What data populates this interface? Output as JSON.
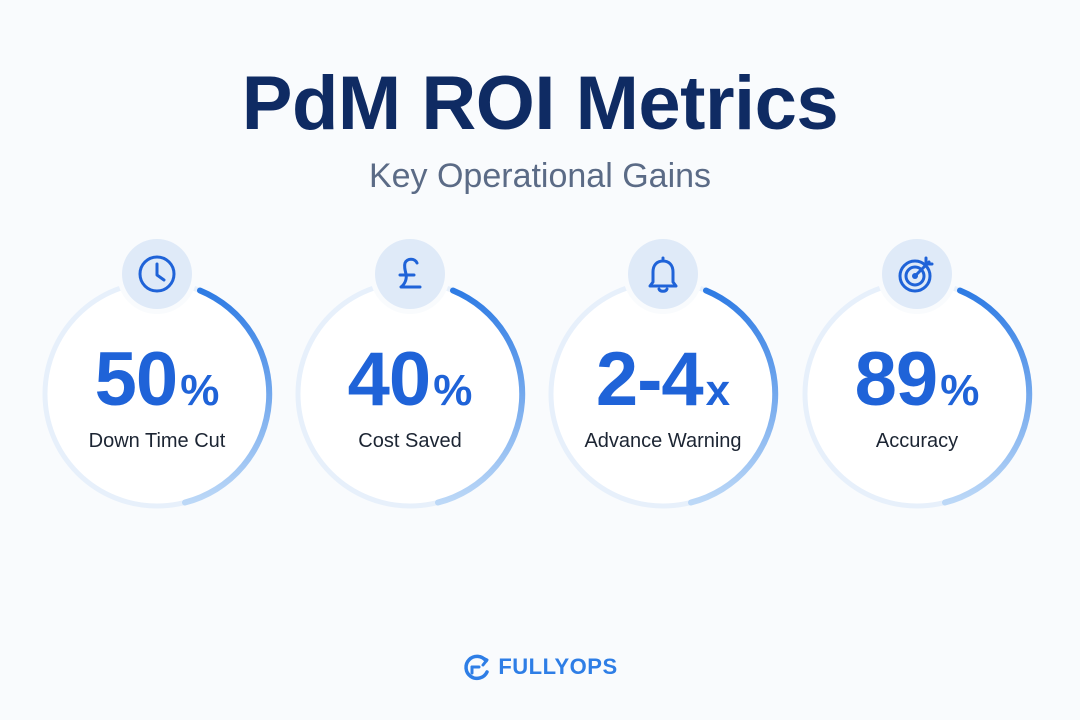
{
  "header": {
    "title": "PdM ROI Metrics",
    "subtitle": "Key Operational Gains"
  },
  "colors": {
    "title": "#0f2b63",
    "subtitle": "#5b6b86",
    "accent": "#1f63d8",
    "ring_track": "#e7f0fb",
    "badge_bg": "#dfeaf8",
    "background": "#f9fbfd"
  },
  "metrics": [
    {
      "icon": "clock-icon",
      "value": "50",
      "unit": "%",
      "label": "Down Time Cut"
    },
    {
      "icon": "pound-sign-icon",
      "value": "40",
      "unit": "%",
      "label": "Cost Saved"
    },
    {
      "icon": "bell-icon",
      "value": "2-4",
      "unit": "x",
      "label": "Advance Warning"
    },
    {
      "icon": "target-icon",
      "value": "89",
      "unit": "%",
      "label": "Accuracy"
    }
  ],
  "footer": {
    "logo_icon": "fullyops-logo-icon",
    "brand": "FULLYOPS"
  }
}
